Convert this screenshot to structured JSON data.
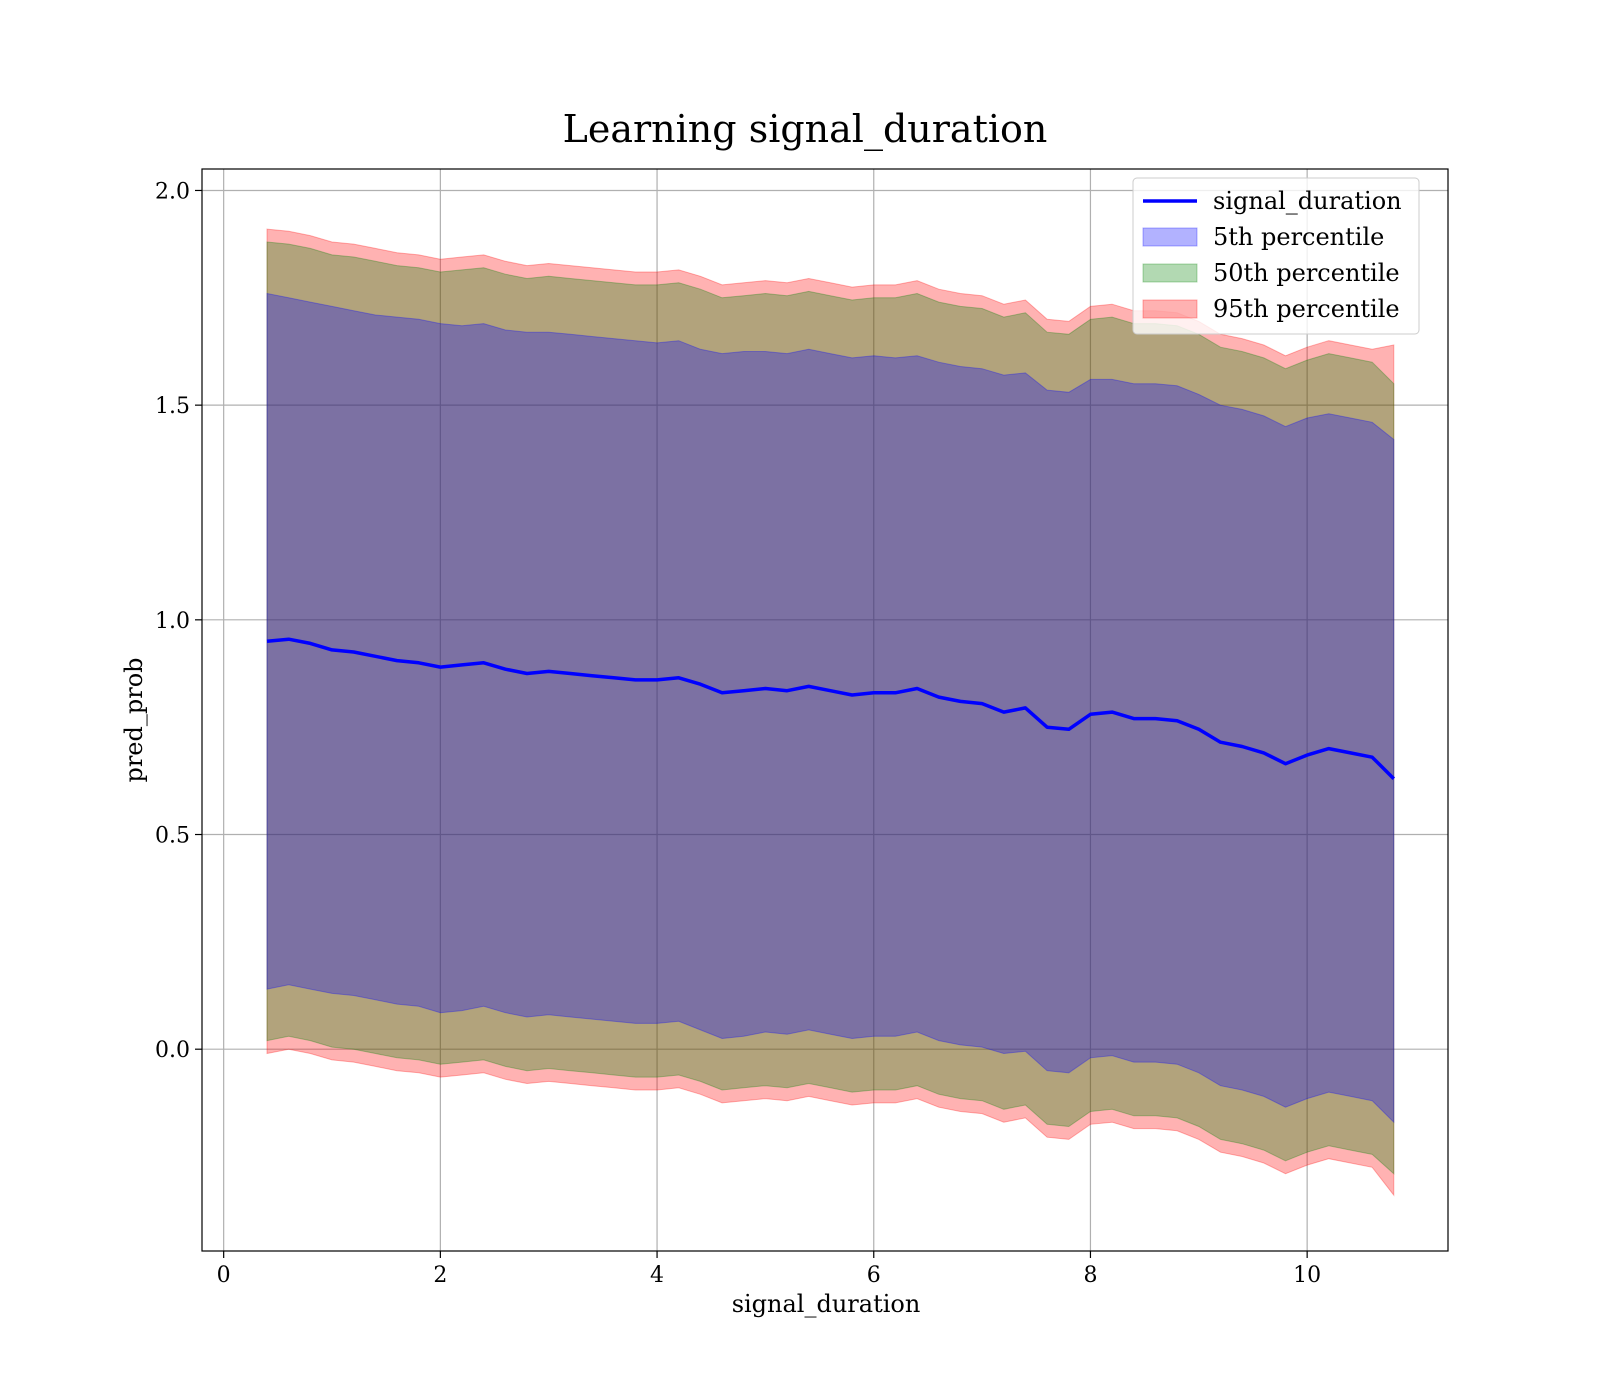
{
  "chart_data": {
    "type": "area",
    "title": "Learning signal_duration",
    "xlabel": "signal_duration",
    "ylabel": "pred_prob",
    "xlim": [
      -0.2,
      11.3
    ],
    "ylim": [
      -0.47,
      2.05
    ],
    "xticks": [
      0,
      2,
      4,
      6,
      8,
      10
    ],
    "yticks": [
      0.0,
      0.5,
      1.0,
      1.5,
      2.0
    ],
    "xtick_labels": [
      "0",
      "2",
      "4",
      "6",
      "8",
      "10"
    ],
    "ytick_labels": [
      "0.0",
      "0.5",
      "1.0",
      "1.5",
      "2.0"
    ],
    "grid": true,
    "legend_position": "top-right",
    "x": [
      0.4,
      0.6,
      0.8,
      1.0,
      1.2,
      1.4,
      1.6,
      1.8,
      2.0,
      2.2,
      2.4,
      2.6,
      2.8,
      3.0,
      3.2,
      3.4,
      3.6,
      3.8,
      4.0,
      4.2,
      4.4,
      4.6,
      4.8,
      5.0,
      5.2,
      5.4,
      5.6,
      5.8,
      6.0,
      6.2,
      6.4,
      6.6,
      6.8,
      7.0,
      7.2,
      7.4,
      7.6,
      7.8,
      8.0,
      8.2,
      8.4,
      8.6,
      8.8,
      9.0,
      9.2,
      9.4,
      9.6,
      9.8,
      10.0,
      10.2,
      10.4,
      10.6,
      10.8
    ],
    "series": [
      {
        "name": "signal_duration",
        "kind": "line",
        "color": "#0000ff",
        "values": [
          0.95,
          0.955,
          0.945,
          0.93,
          0.925,
          0.915,
          0.905,
          0.9,
          0.89,
          0.895,
          0.9,
          0.885,
          0.875,
          0.88,
          0.875,
          0.87,
          0.865,
          0.86,
          0.86,
          0.865,
          0.85,
          0.83,
          0.835,
          0.84,
          0.835,
          0.845,
          0.835,
          0.825,
          0.83,
          0.83,
          0.84,
          0.82,
          0.81,
          0.805,
          0.785,
          0.795,
          0.75,
          0.745,
          0.78,
          0.785,
          0.77,
          0.77,
          0.765,
          0.745,
          0.715,
          0.705,
          0.69,
          0.665,
          0.685,
          0.7,
          0.69,
          0.68,
          0.63
        ]
      },
      {
        "name": "5th percentile",
        "kind": "band",
        "color": "#0000ff",
        "upper": [
          1.76,
          1.75,
          1.74,
          1.73,
          1.72,
          1.71,
          1.705,
          1.7,
          1.69,
          1.685,
          1.69,
          1.675,
          1.67,
          1.67,
          1.665,
          1.66,
          1.655,
          1.65,
          1.645,
          1.65,
          1.63,
          1.62,
          1.625,
          1.625,
          1.62,
          1.63,
          1.62,
          1.61,
          1.615,
          1.61,
          1.615,
          1.6,
          1.59,
          1.585,
          1.57,
          1.575,
          1.535,
          1.53,
          1.56,
          1.56,
          1.55,
          1.55,
          1.545,
          1.525,
          1.5,
          1.49,
          1.475,
          1.45,
          1.47,
          1.48,
          1.47,
          1.46,
          1.42
        ],
        "lower": [
          0.14,
          0.15,
          0.14,
          0.13,
          0.125,
          0.115,
          0.105,
          0.1,
          0.085,
          0.09,
          0.1,
          0.085,
          0.075,
          0.08,
          0.075,
          0.07,
          0.065,
          0.06,
          0.06,
          0.065,
          0.045,
          0.025,
          0.03,
          0.04,
          0.035,
          0.045,
          0.035,
          0.025,
          0.03,
          0.03,
          0.04,
          0.02,
          0.01,
          0.005,
          -0.01,
          -0.005,
          -0.05,
          -0.055,
          -0.02,
          -0.015,
          -0.03,
          -0.03,
          -0.035,
          -0.055,
          -0.085,
          -0.095,
          -0.11,
          -0.135,
          -0.115,
          -0.1,
          -0.11,
          -0.12,
          -0.17
        ]
      },
      {
        "name": "50th percentile",
        "kind": "band",
        "color": "#008000",
        "upper": [
          1.88,
          1.875,
          1.865,
          1.85,
          1.845,
          1.835,
          1.825,
          1.82,
          1.81,
          1.815,
          1.82,
          1.805,
          1.795,
          1.8,
          1.795,
          1.79,
          1.785,
          1.78,
          1.78,
          1.785,
          1.77,
          1.75,
          1.755,
          1.76,
          1.755,
          1.765,
          1.755,
          1.745,
          1.75,
          1.75,
          1.76,
          1.74,
          1.73,
          1.725,
          1.705,
          1.715,
          1.67,
          1.665,
          1.7,
          1.705,
          1.69,
          1.69,
          1.685,
          1.665,
          1.635,
          1.625,
          1.61,
          1.585,
          1.605,
          1.62,
          1.61,
          1.6,
          1.55
        ],
        "lower": [
          0.02,
          0.03,
          0.02,
          0.005,
          0.0,
          -0.01,
          -0.02,
          -0.025,
          -0.035,
          -0.03,
          -0.025,
          -0.04,
          -0.05,
          -0.045,
          -0.05,
          -0.055,
          -0.06,
          -0.065,
          -0.065,
          -0.06,
          -0.075,
          -0.095,
          -0.09,
          -0.085,
          -0.09,
          -0.08,
          -0.09,
          -0.1,
          -0.095,
          -0.095,
          -0.085,
          -0.105,
          -0.115,
          -0.12,
          -0.14,
          -0.13,
          -0.175,
          -0.18,
          -0.145,
          -0.14,
          -0.155,
          -0.155,
          -0.16,
          -0.18,
          -0.21,
          -0.22,
          -0.235,
          -0.26,
          -0.24,
          -0.225,
          -0.235,
          -0.245,
          -0.29
        ]
      },
      {
        "name": "95th percentile",
        "kind": "band",
        "color": "#ff0000",
        "upper": [
          1.91,
          1.905,
          1.895,
          1.88,
          1.875,
          1.865,
          1.855,
          1.85,
          1.84,
          1.845,
          1.85,
          1.835,
          1.825,
          1.83,
          1.825,
          1.82,
          1.815,
          1.81,
          1.81,
          1.815,
          1.8,
          1.78,
          1.785,
          1.79,
          1.785,
          1.795,
          1.785,
          1.775,
          1.78,
          1.78,
          1.79,
          1.77,
          1.76,
          1.755,
          1.735,
          1.745,
          1.7,
          1.695,
          1.73,
          1.735,
          1.72,
          1.72,
          1.715,
          1.695,
          1.665,
          1.655,
          1.64,
          1.615,
          1.635,
          1.65,
          1.64,
          1.63,
          1.64
        ],
        "lower": [
          -0.01,
          0.0,
          -0.01,
          -0.025,
          -0.03,
          -0.04,
          -0.05,
          -0.055,
          -0.065,
          -0.06,
          -0.055,
          -0.07,
          -0.08,
          -0.075,
          -0.08,
          -0.085,
          -0.09,
          -0.095,
          -0.095,
          -0.09,
          -0.105,
          -0.125,
          -0.12,
          -0.115,
          -0.12,
          -0.11,
          -0.12,
          -0.13,
          -0.125,
          -0.125,
          -0.115,
          -0.135,
          -0.145,
          -0.15,
          -0.17,
          -0.16,
          -0.205,
          -0.21,
          -0.175,
          -0.17,
          -0.185,
          -0.185,
          -0.19,
          -0.21,
          -0.24,
          -0.25,
          -0.265,
          -0.29,
          -0.27,
          -0.255,
          -0.265,
          -0.275,
          -0.34
        ]
      }
    ]
  }
}
